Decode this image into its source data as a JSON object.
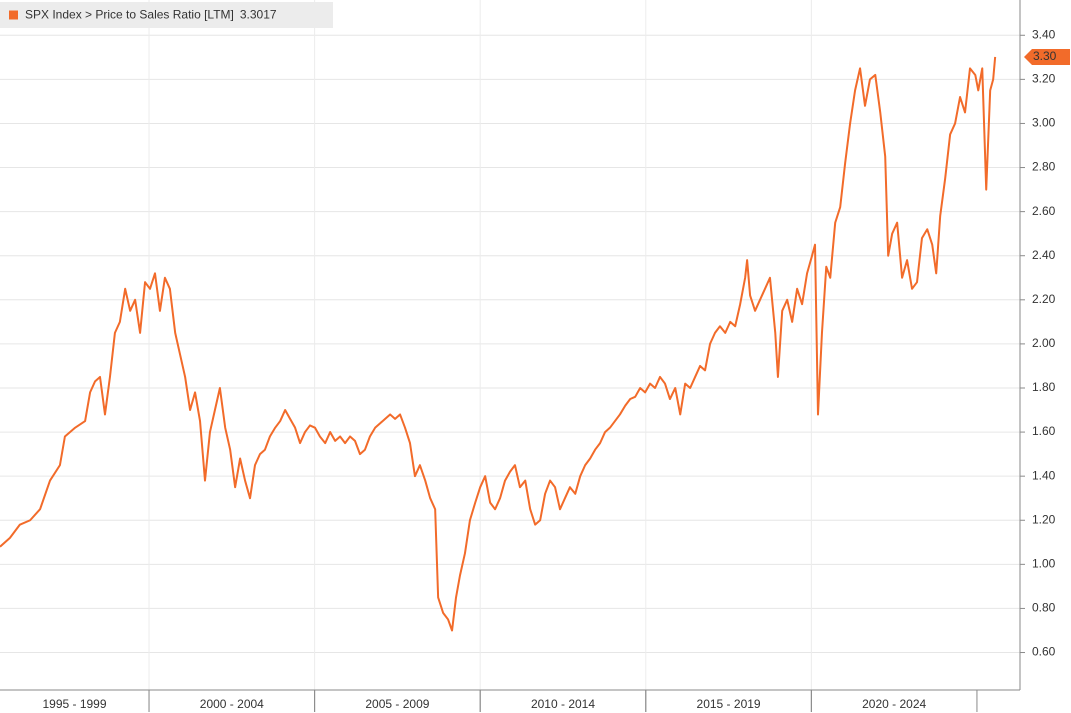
{
  "chart_data": {
    "type": "line",
    "series": [
      {
        "name": "SPX Index > Price to Sales Ratio [LTM]",
        "color": "#f26b2a",
        "values": [
          1.08,
          1.12,
          1.18,
          1.2,
          1.25,
          1.38,
          1.45,
          1.58,
          1.62,
          1.65,
          1.78,
          1.83,
          1.85,
          1.68,
          1.85,
          2.05,
          2.1,
          2.25,
          2.15,
          2.2,
          2.05,
          2.28,
          2.25,
          2.32,
          2.15,
          2.3,
          2.25,
          2.05,
          1.95,
          1.85,
          1.7,
          1.78,
          1.65,
          1.38,
          1.6,
          1.7,
          1.8,
          1.62,
          1.52,
          1.35,
          1.48,
          1.38,
          1.3,
          1.45,
          1.5,
          1.52,
          1.58,
          1.62,
          1.65,
          1.7,
          1.66,
          1.62,
          1.55,
          1.6,
          1.63,
          1.62,
          1.58,
          1.55,
          1.6,
          1.56,
          1.58,
          1.55,
          1.58,
          1.56,
          1.5,
          1.52,
          1.58,
          1.62,
          1.64,
          1.66,
          1.68,
          1.66,
          1.68,
          1.62,
          1.55,
          1.4,
          1.45,
          1.38,
          1.3,
          1.25,
          0.85,
          0.78,
          0.75,
          0.7,
          0.85,
          0.95,
          1.05,
          1.2,
          1.28,
          1.35,
          1.4,
          1.28,
          1.25,
          1.3,
          1.38,
          1.42,
          1.45,
          1.35,
          1.38,
          1.25,
          1.18,
          1.2,
          1.32,
          1.38,
          1.35,
          1.25,
          1.3,
          1.35,
          1.32,
          1.4,
          1.45,
          1.48,
          1.52,
          1.55,
          1.6,
          1.62,
          1.65,
          1.68,
          1.72,
          1.75,
          1.76,
          1.8,
          1.78,
          1.82,
          1.8,
          1.85,
          1.82,
          1.75,
          1.8,
          1.68,
          1.82,
          1.8,
          1.85,
          1.9,
          1.88,
          2.0,
          2.05,
          2.08,
          2.05,
          2.1,
          2.08,
          2.18,
          2.3,
          2.38,
          2.22,
          2.15,
          2.2,
          2.25,
          2.3,
          2.05,
          1.85,
          2.15,
          2.2,
          2.1,
          2.25,
          2.18,
          2.32,
          2.4,
          2.45,
          1.68,
          2.05,
          2.35,
          2.3,
          2.55,
          2.62,
          2.82,
          3.0,
          3.15,
          3.25,
          3.08,
          3.2,
          3.22,
          3.05,
          2.85,
          2.4,
          2.5,
          2.55,
          2.3,
          2.38,
          2.25,
          2.28,
          2.48,
          2.52,
          2.45,
          2.32,
          2.58,
          2.75,
          2.95,
          3.0,
          3.12,
          3.05,
          3.25,
          3.22,
          3.15,
          3.25,
          2.7,
          3.15,
          3.2,
          3.3017
        ]
      }
    ],
    "x": [
      1995.5,
      1995.8,
      1996.1,
      1996.41,
      1996.71,
      1997.01,
      1997.31,
      1997.46,
      1997.77,
      1998.07,
      1998.22,
      1998.37,
      1998.52,
      1998.67,
      1998.82,
      1998.97,
      1999.12,
      1999.28,
      1999.43,
      1999.58,
      1999.73,
      1999.88,
      2000.03,
      2000.18,
      2000.33,
      2000.48,
      2000.63,
      2000.79,
      2000.94,
      2001.09,
      2001.24,
      2001.39,
      2001.54,
      2001.69,
      2001.84,
      2001.99,
      2002.14,
      2002.3,
      2002.45,
      2002.6,
      2002.75,
      2002.9,
      2003.05,
      2003.2,
      2003.35,
      2003.5,
      2003.65,
      2003.81,
      2003.96,
      2004.11,
      2004.26,
      2004.41,
      2004.56,
      2004.71,
      2004.86,
      2005.01,
      2005.16,
      2005.32,
      2005.47,
      2005.62,
      2005.77,
      2005.92,
      2006.07,
      2006.22,
      2006.37,
      2006.52,
      2006.67,
      2006.83,
      2006.98,
      2007.13,
      2007.28,
      2007.43,
      2007.58,
      2007.73,
      2007.88,
      2008.03,
      2008.18,
      2008.34,
      2008.49,
      2008.64,
      2008.73,
      2008.88,
      2009.03,
      2009.15,
      2009.27,
      2009.39,
      2009.54,
      2009.69,
      2009.85,
      2010.0,
      2010.15,
      2010.3,
      2010.45,
      2010.6,
      2010.75,
      2010.9,
      2011.05,
      2011.2,
      2011.36,
      2011.51,
      2011.66,
      2011.81,
      2011.96,
      2012.11,
      2012.26,
      2012.41,
      2012.56,
      2012.71,
      2012.87,
      2013.02,
      2013.17,
      2013.32,
      2013.47,
      2013.62,
      2013.77,
      2013.92,
      2014.07,
      2014.22,
      2014.38,
      2014.53,
      2014.68,
      2014.83,
      2014.98,
      2015.13,
      2015.28,
      2015.43,
      2015.58,
      2015.73,
      2015.89,
      2016.04,
      2016.19,
      2016.34,
      2016.49,
      2016.64,
      2016.79,
      2016.94,
      2017.09,
      2017.24,
      2017.4,
      2017.55,
      2017.7,
      2017.85,
      2018.0,
      2018.06,
      2018.15,
      2018.3,
      2018.45,
      2018.6,
      2018.75,
      2018.91,
      2018.99,
      2019.12,
      2019.27,
      2019.42,
      2019.57,
      2019.72,
      2019.87,
      2020.02,
      2020.11,
      2020.2,
      2020.32,
      2020.45,
      2020.57,
      2020.72,
      2020.87,
      2021.02,
      2021.17,
      2021.32,
      2021.47,
      2021.62,
      2021.77,
      2021.93,
      2022.08,
      2022.23,
      2022.32,
      2022.44,
      2022.59,
      2022.74,
      2022.89,
      2023.04,
      2023.19,
      2023.34,
      2023.5,
      2023.65,
      2023.77,
      2023.89,
      2024.04,
      2024.19,
      2024.34,
      2024.49,
      2024.64,
      2024.79,
      2024.95,
      2025.04,
      2025.16,
      2025.28,
      2025.4,
      2025.49,
      2025.55
    ],
    "last_value": 3.3017,
    "last_value_label": "3.30",
    "xlim": [
      1995.5,
      2026.3
    ],
    "ylim": [
      0.43,
      3.56
    ],
    "yticks": [
      {
        "value": 0.6,
        "label": "0.60"
      },
      {
        "value": 0.8,
        "label": "0.80"
      },
      {
        "value": 1.0,
        "label": "1.00"
      },
      {
        "value": 1.2,
        "label": "1.20"
      },
      {
        "value": 1.4,
        "label": "1.40"
      },
      {
        "value": 1.6,
        "label": "1.60"
      },
      {
        "value": 1.8,
        "label": "1.80"
      },
      {
        "value": 2.0,
        "label": "2.00"
      },
      {
        "value": 2.2,
        "label": "2.20"
      },
      {
        "value": 2.4,
        "label": "2.40"
      },
      {
        "value": 2.6,
        "label": "2.60"
      },
      {
        "value": 2.8,
        "label": "2.80"
      },
      {
        "value": 3.0,
        "label": "3.00"
      },
      {
        "value": 3.2,
        "label": "3.20"
      },
      {
        "value": 3.4,
        "label": "3.40"
      }
    ],
    "x_periods": [
      {
        "label": "1995 - 1999",
        "start": 1995,
        "end": 2000
      },
      {
        "label": "2000 - 2004",
        "start": 2000,
        "end": 2005
      },
      {
        "label": "2005 - 2009",
        "start": 2005,
        "end": 2010
      },
      {
        "label": "2010 - 2014",
        "start": 2010,
        "end": 2015
      },
      {
        "label": "2015 - 2019",
        "start": 2015,
        "end": 2020
      },
      {
        "label": "2020 - 2024",
        "start": 2020,
        "end": 2025
      }
    ],
    "y_axis_side": "right",
    "grid": true
  }
}
